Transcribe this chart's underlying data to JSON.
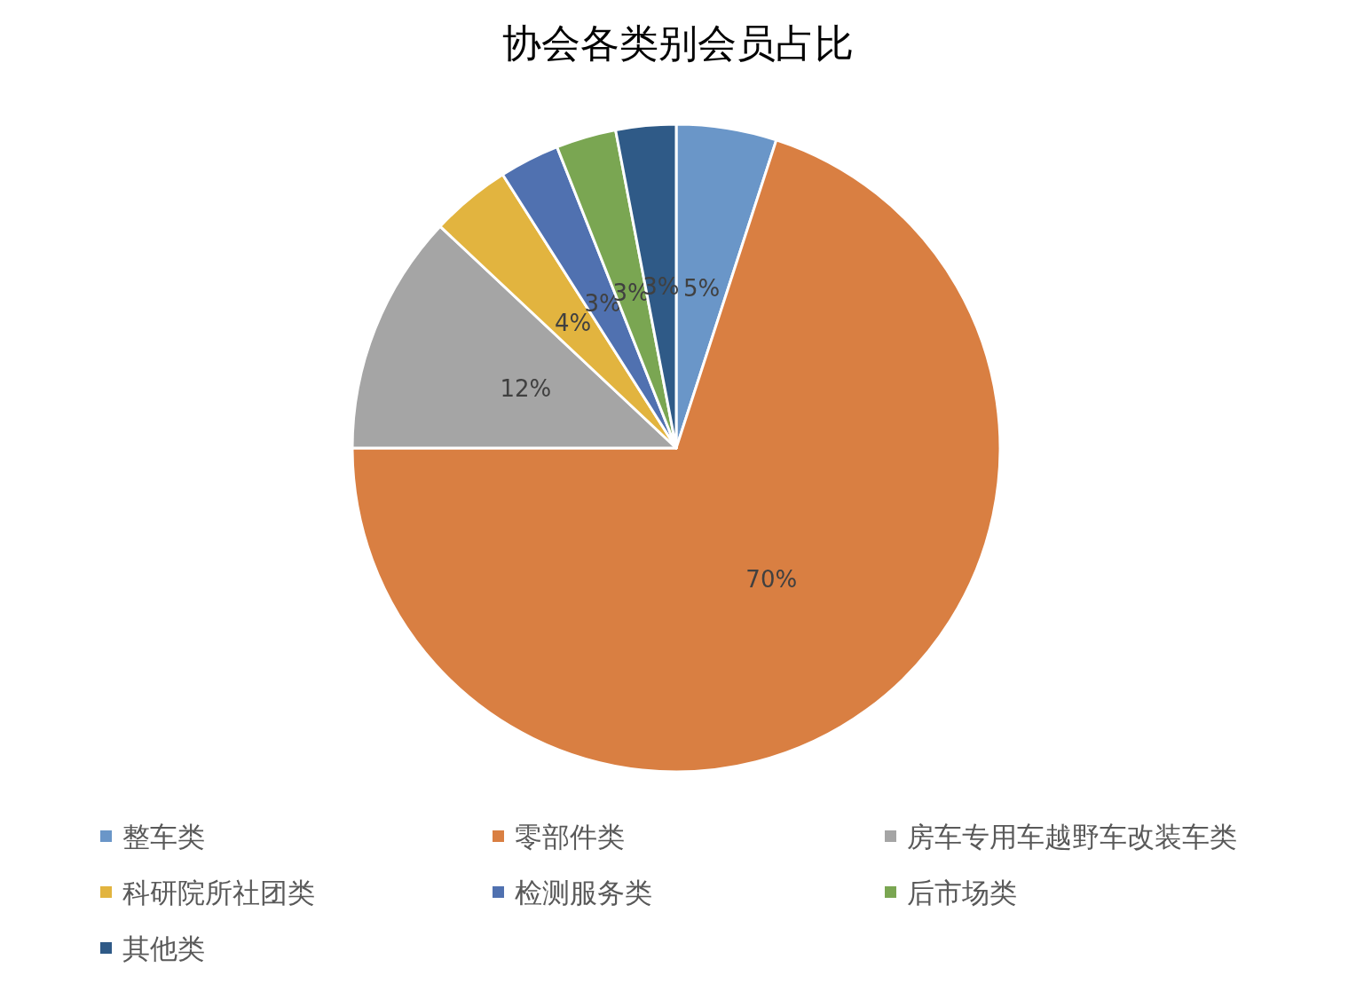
{
  "chart_data": {
    "type": "pie",
    "title": "协会各类别会员占比",
    "categories": [
      "整车类",
      "零部件类",
      "房车专用车越野车改装车类",
      "科研院所社团类",
      "检测服务类",
      "后市场类",
      "其他类"
    ],
    "values": [
      5,
      70,
      12,
      4,
      3,
      3,
      3
    ],
    "value_labels": [
      "5%",
      "70%",
      "12%",
      "4%",
      "3%",
      "3%",
      "3%"
    ],
    "colors": [
      "#6a96c8",
      "#d97f42",
      "#a5a5a5",
      "#e2b43f",
      "#5071b0",
      "#7aa652",
      "#2f5a87"
    ],
    "legend": "bottom"
  }
}
